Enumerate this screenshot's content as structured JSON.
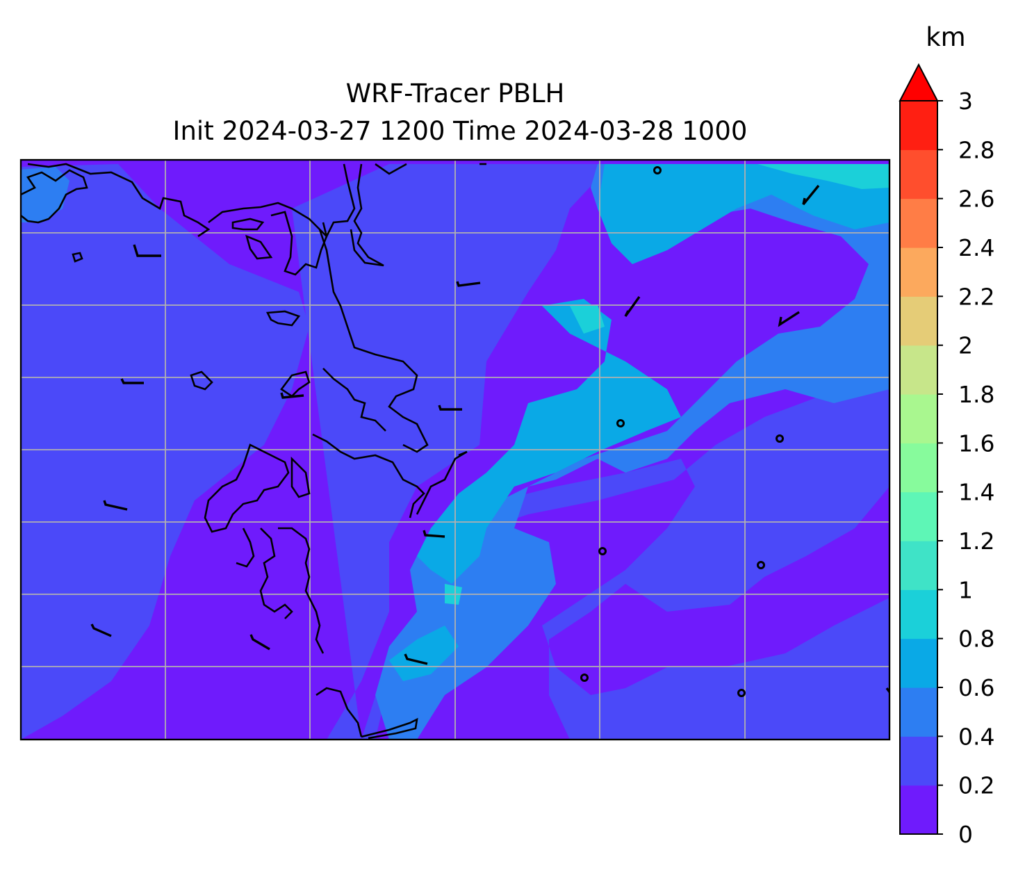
{
  "title": {
    "line1": "WRF-Tracer PBLH",
    "line2": "Init 2024-03-27 1200 Time 2024-03-28 1000"
  },
  "colorbar": {
    "unit": "km",
    "extend": "max",
    "ticks": [
      "0",
      "0.2",
      "0.4",
      "0.6",
      "0.8",
      "1",
      "1.2",
      "1.4",
      "1.6",
      "1.8",
      "2",
      "2.2",
      "2.4",
      "2.6",
      "2.8",
      "3"
    ],
    "levels": [
      0,
      0.2,
      0.4,
      0.6,
      0.8,
      1.0,
      1.2,
      1.4,
      1.6,
      1.8,
      2.0,
      2.2,
      2.4,
      2.6,
      2.8,
      3.0
    ],
    "bin_colors": [
      "#6f1bfc",
      "#4b49f9",
      "#2d7ef2",
      "#0aa9e6",
      "#1bd0d9",
      "#3fe3c7",
      "#5ef6b6",
      "#87fb9c",
      "#a9f78f",
      "#c7e68a",
      "#e5cc77",
      "#fca95d",
      "#ff7d46",
      "#ff4e2d",
      "#ff1f12"
    ],
    "over_color": "#ff0000"
  },
  "map": {
    "field_colors": {
      "lowest": "#6f1bfc",
      "low": "#4b49f9",
      "mid": "#2d7ef2",
      "high": "#0aa9e6",
      "highest": "#1bd0d9"
    },
    "gridline_color": "#b0b0b0",
    "gridlines": true,
    "coastline_color": "#000000"
  }
}
